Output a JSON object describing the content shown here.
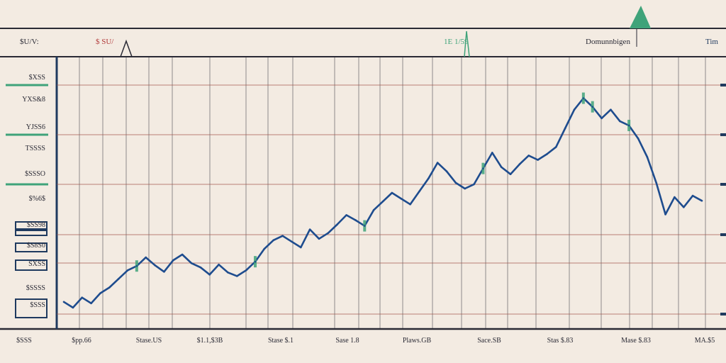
{
  "chart_data": {
    "type": "line",
    "title": "",
    "xlabel": "",
    "ylabel": "",
    "header_labels": [
      "$U/V:",
      "$ SU/",
      "1E 1/59",
      "Domunnbigen",
      "Tim"
    ],
    "y_tick_labels": [
      "$XSS",
      "YXS&8",
      "YJSS6",
      "TSSSS",
      "$SSSO",
      "$%6$",
      "$SS98",
      "$S8S0",
      "SXSS",
      "$SSSS",
      "$SSS"
    ],
    "x_tick_labels": [
      "$SSS",
      "$pp.66",
      "Stase.US",
      "$1.1,$3B",
      "Stase $.1",
      "Sase 1.8",
      "Plaws.GB",
      "Sace.SB",
      "Stas $.83",
      "Mase $.83",
      "MA.$5"
    ],
    "colors": {
      "background": "#f3ebe2",
      "line": "#1e4c8e",
      "accent_green": "#3fa37a",
      "accent_red": "#b13a3a",
      "navy": "#1f3a5f",
      "grid": "#2a2a35",
      "ref_line": "#a05248"
    },
    "series": [
      {
        "x": [
          0,
          2,
          4,
          6,
          8,
          10,
          12,
          14,
          16,
          18,
          20,
          22,
          24,
          26,
          28,
          30,
          32,
          34,
          36,
          38,
          40,
          42,
          44,
          46,
          48,
          50,
          52,
          54,
          56,
          58,
          60,
          62,
          64,
          66,
          68,
          70,
          72,
          74,
          76,
          78,
          80,
          82,
          84,
          86,
          88,
          90,
          92,
          94,
          96,
          98,
          100,
          102,
          104,
          106,
          108,
          110,
          112,
          114,
          116,
          118,
          120,
          122,
          124,
          126,
          128,
          130,
          132,
          134,
          136,
          138,
          140
        ],
        "y": [
          2,
          1.2,
          2.6,
          1.8,
          3.2,
          4,
          5.2,
          6.4,
          7,
          8.2,
          7.1,
          6.2,
          7.8,
          8.6,
          7.4,
          6.8,
          5.8,
          7.2,
          6.1,
          5.6,
          6.4,
          7.6,
          9.4,
          10.6,
          11.2,
          10.4,
          9.6,
          12.1,
          10.8,
          11.6,
          12.8,
          14.1,
          13.4,
          12.6,
          14.8,
          16,
          17.2,
          16.4,
          15.6,
          17.4,
          19.2,
          21.4,
          20.2,
          18.6,
          17.8,
          18.4,
          20.6,
          22.8,
          20.8,
          19.8,
          21.2,
          22.4,
          21.8,
          22.6,
          23.6,
          26.2,
          28.8,
          30.4,
          29.2,
          27.6,
          28.8,
          27.2,
          26.6,
          24.8,
          22.2,
          18.6,
          14.2,
          16.6,
          15.2,
          16.8,
          16.1
        ]
      }
    ],
    "ylim": [
      0,
      35
    ],
    "grid": true
  }
}
